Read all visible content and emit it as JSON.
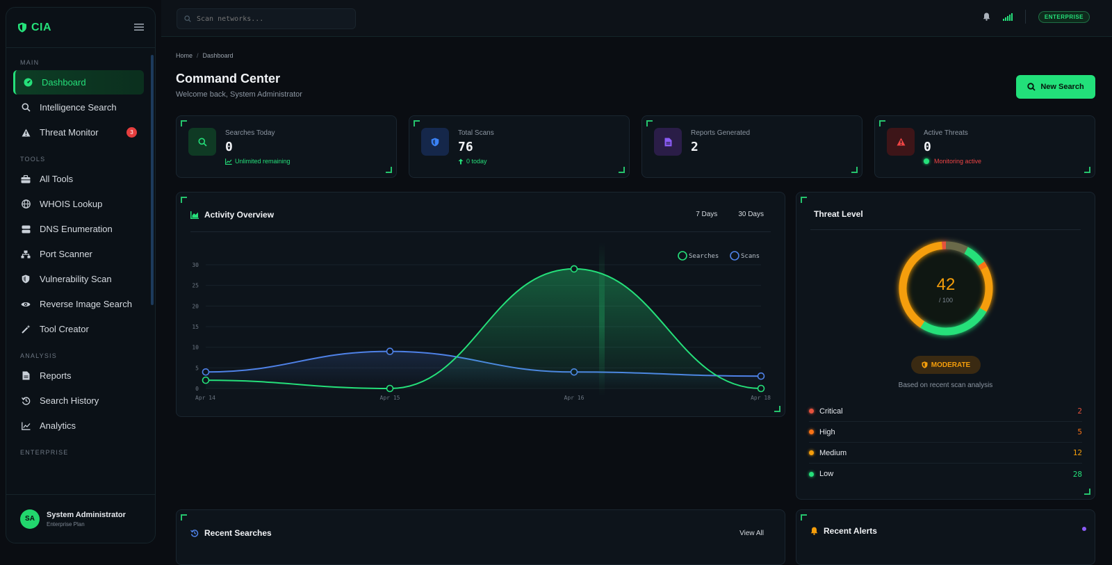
{
  "app": {
    "name": "CIA"
  },
  "sidebar": {
    "sections": [
      {
        "title": "MAIN",
        "items": [
          {
            "label": "Dashboard",
            "icon": "dashboard-icon",
            "active": true
          },
          {
            "label": "Intelligence Search",
            "icon": "search-icon"
          },
          {
            "label": "Threat Monitor",
            "icon": "warning-icon",
            "badge": "3"
          }
        ]
      },
      {
        "title": "TOOLS",
        "items": [
          {
            "label": "All Tools",
            "icon": "toolbox-icon"
          },
          {
            "label": "WHOIS Lookup",
            "icon": "globe-icon"
          },
          {
            "label": "DNS Enumeration",
            "icon": "server-icon"
          },
          {
            "label": "Port Scanner",
            "icon": "network-icon"
          },
          {
            "label": "Vulnerability Scan",
            "icon": "shield-icon"
          },
          {
            "label": "Reverse Image Search",
            "icon": "eye-icon"
          },
          {
            "label": "Tool Creator",
            "icon": "wand-icon"
          }
        ]
      },
      {
        "title": "ANALYSIS",
        "items": [
          {
            "label": "Reports",
            "icon": "file-icon"
          },
          {
            "label": "Search History",
            "icon": "history-icon"
          },
          {
            "label": "Analytics",
            "icon": "chart-line-icon"
          }
        ]
      },
      {
        "title": "ENTERPRISE",
        "items": []
      }
    ],
    "user": {
      "initials": "SA",
      "name": "System Administrator",
      "plan": "Enterprise Plan"
    }
  },
  "topbar": {
    "search_placeholder": "Scan networks...",
    "plan_badge": "ENTERPRISE"
  },
  "page": {
    "breadcrumb": [
      "Home",
      "Dashboard"
    ],
    "title": "Command Center",
    "subtitle": "Welcome back, System Administrator",
    "new_search_label": "New Search"
  },
  "stats": [
    {
      "label": "Searches Today",
      "value": "0",
      "note": "Unlimited remaining",
      "color": "#25e07a",
      "icon": "search-icon"
    },
    {
      "label": "Total Scans",
      "value": "76",
      "note": "0 today",
      "color": "#3b82f6",
      "icon": "shield-icon"
    },
    {
      "label": "Reports Generated",
      "value": "2",
      "note": "",
      "color": "#8b5cf6",
      "icon": "file-icon"
    },
    {
      "label": "Active Threats",
      "value": "0",
      "note": "Monitoring active",
      "color": "#ef4444",
      "icon": "warning-icon"
    }
  ],
  "activity": {
    "title": "Activity Overview",
    "ranges": [
      "7 Days",
      "30 Days"
    ]
  },
  "chart_data": {
    "type": "line",
    "x": [
      "Apr 14",
      "Apr 15",
      "Apr 16",
      "Apr 18"
    ],
    "series": [
      {
        "name": "Searches",
        "values": [
          2,
          0,
          29,
          0
        ],
        "color": "#25e07a"
      },
      {
        "name": "Scans",
        "values": [
          4,
          9,
          4,
          3
        ],
        "color": "#4f82e8"
      }
    ],
    "yticks": [
      0,
      5,
      10,
      15,
      20,
      25,
      30
    ],
    "ylim": [
      0,
      30
    ],
    "legend": "top-right",
    "grid": true
  },
  "threat": {
    "title": "Threat Level",
    "score": "42",
    "max": "/ 100",
    "level": "MODERATE",
    "caption": "Based on recent scan analysis",
    "rows": [
      {
        "label": "Critical",
        "value": "2",
        "color": "#e5533d"
      },
      {
        "label": "High",
        "value": "5",
        "color": "#f97316"
      },
      {
        "label": "Medium",
        "value": "12",
        "color": "#f59e0b"
      },
      {
        "label": "Low",
        "value": "28",
        "color": "#25e07a"
      }
    ]
  },
  "recent_searches": {
    "title": "Recent Searches",
    "view_all": "View All"
  },
  "recent_alerts": {
    "title": "Recent Alerts"
  }
}
